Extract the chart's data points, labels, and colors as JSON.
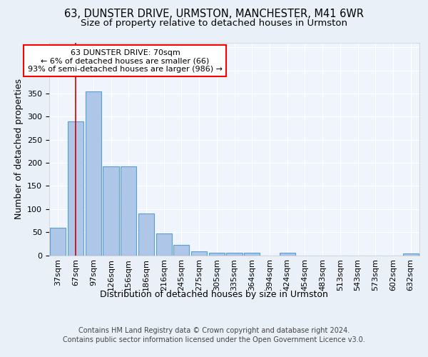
{
  "title_line1": "63, DUNSTER DRIVE, URMSTON, MANCHESTER, M41 6WR",
  "title_line2": "Size of property relative to detached houses in Urmston",
  "xlabel": "Distribution of detached houses by size in Urmston",
  "ylabel": "Number of detached properties",
  "categories": [
    "37sqm",
    "67sqm",
    "97sqm",
    "126sqm",
    "156sqm",
    "186sqm",
    "216sqm",
    "245sqm",
    "275sqm",
    "305sqm",
    "335sqm",
    "364sqm",
    "394sqm",
    "424sqm",
    "454sqm",
    "483sqm",
    "513sqm",
    "543sqm",
    "573sqm",
    "602sqm",
    "632sqm"
  ],
  "values": [
    60,
    290,
    355,
    192,
    192,
    90,
    47,
    22,
    9,
    6,
    5,
    5,
    0,
    5,
    0,
    0,
    0,
    0,
    0,
    0,
    4
  ],
  "bar_color": "#aec6e8",
  "bar_edge_color": "#5a9fd4",
  "annotation_line1": "63 DUNSTER DRIVE: 70sqm",
  "annotation_line2": "← 6% of detached houses are smaller (66)",
  "annotation_line3": "93% of semi-detached houses are larger (986) →",
  "annotation_box_color": "white",
  "annotation_box_edge_color": "red",
  "vline_x_index": 1,
  "vline_color": "#cc0000",
  "footer_line1": "Contains HM Land Registry data © Crown copyright and database right 2024.",
  "footer_line2": "Contains public sector information licensed under the Open Government Licence v3.0.",
  "bg_color": "#eaf0f8",
  "plot_bg_color": "#f0f4fc",
  "ylim": [
    0,
    460
  ],
  "title_fontsize": 10.5,
  "subtitle_fontsize": 9.5,
  "axis_label_fontsize": 9,
  "tick_fontsize": 8,
  "annotation_fontsize": 8,
  "footer_fontsize": 7
}
